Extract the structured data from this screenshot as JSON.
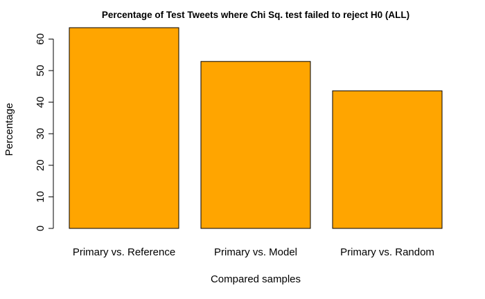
{
  "chart_data": {
    "type": "bar",
    "title": "Percentage of Test Tweets where Chi Sq. test failed to reject H0 (ALL)",
    "xlabel": "Compared samples",
    "ylabel": "Percentage",
    "categories": [
      "Primary vs. Reference",
      "Primary vs. Model",
      "Primary vs. Random"
    ],
    "values": [
      63.6,
      52.9,
      43.6
    ],
    "ylim": [
      0,
      63.6
    ],
    "yticks": [
      0,
      10,
      20,
      30,
      40,
      50,
      60
    ],
    "bar_color": "#FFA500",
    "bar_border_color": "#000000",
    "grid": false,
    "legend": "none"
  }
}
